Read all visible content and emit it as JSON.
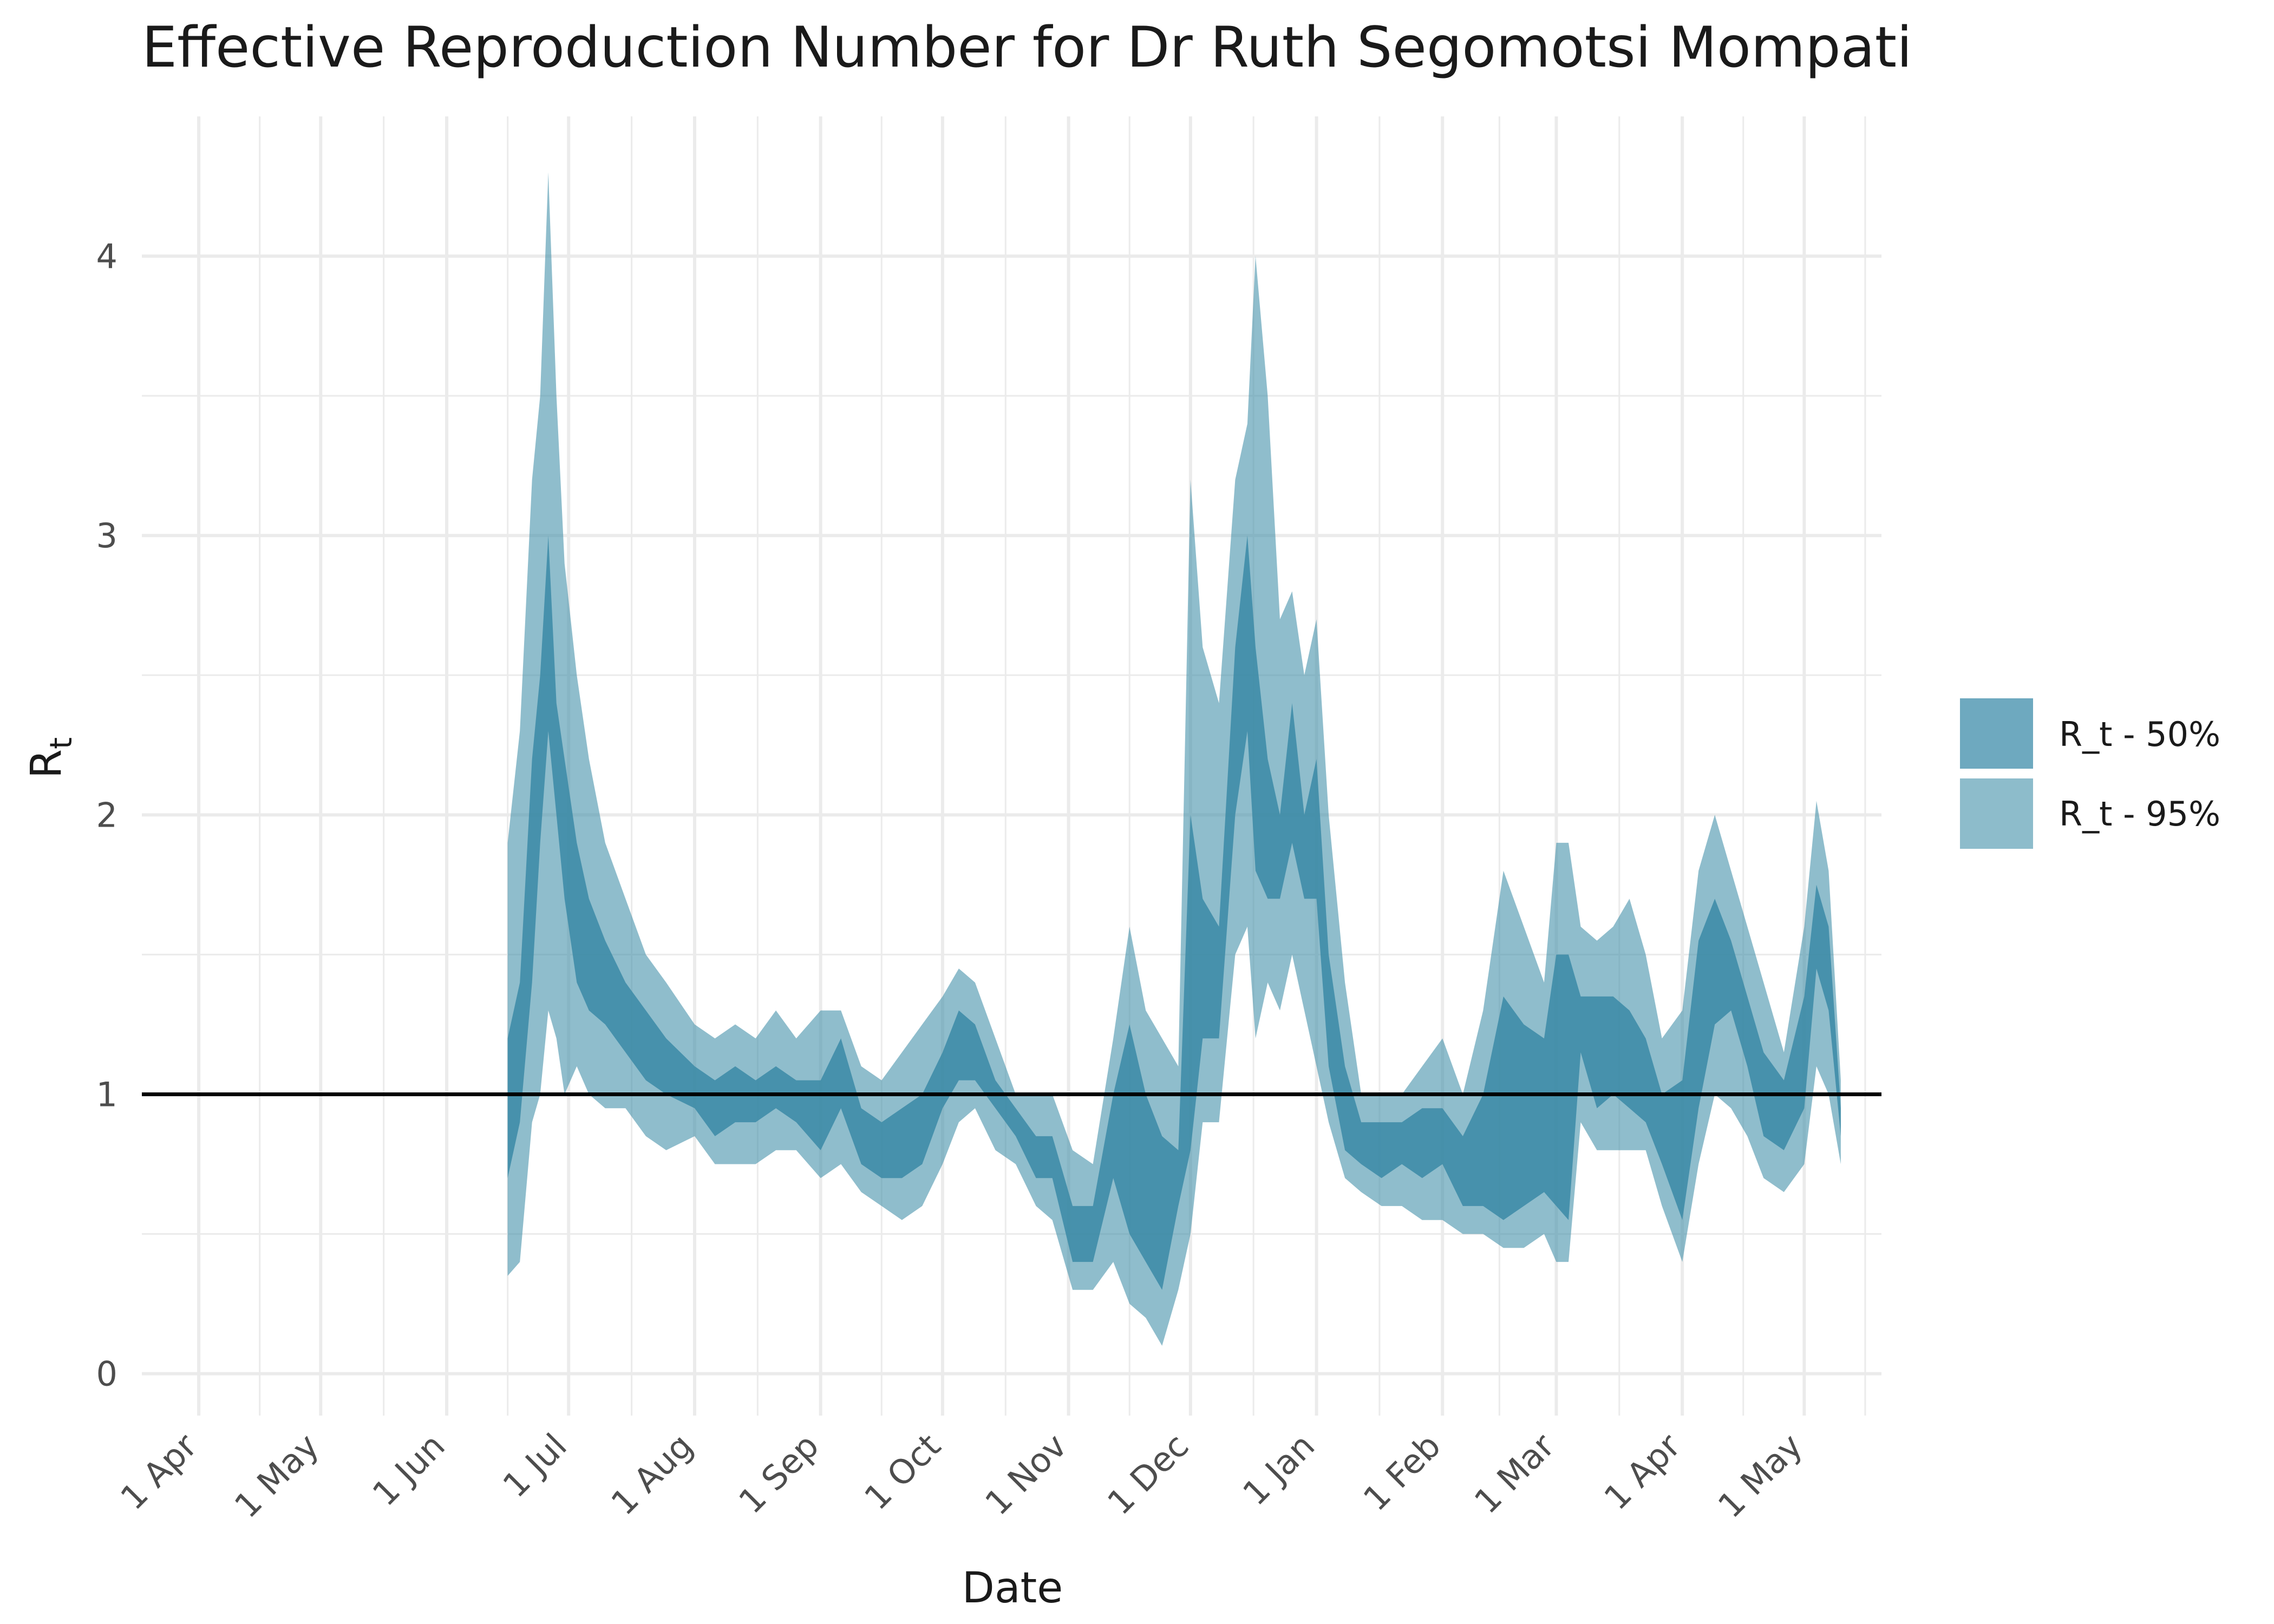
{
  "chart_data": {
    "type": "area",
    "title": "Effective Reproduction Number for Dr Ruth Segomotsi Mompati",
    "xlabel": "Date",
    "ylabel": "R",
    "ylabel_subscript": "t",
    "x_start": "2020-03-18",
    "x_end": "2021-05-20",
    "ylim": [
      -0.15,
      4.5
    ],
    "y_ticks": [
      0,
      1,
      2,
      3,
      4
    ],
    "x_ticks": [
      {
        "date": "2020-04-01",
        "label": "1 Apr"
      },
      {
        "date": "2020-05-01",
        "label": "1 May"
      },
      {
        "date": "2020-06-01",
        "label": "1 Jun"
      },
      {
        "date": "2020-07-01",
        "label": "1 Jul"
      },
      {
        "date": "2020-08-01",
        "label": "1 Aug"
      },
      {
        "date": "2020-09-01",
        "label": "1 Sep"
      },
      {
        "date": "2020-10-01",
        "label": "1 Oct"
      },
      {
        "date": "2020-11-01",
        "label": "1 Nov"
      },
      {
        "date": "2020-12-01",
        "label": "1 Dec"
      },
      {
        "date": "2021-01-01",
        "label": "1 Jan"
      },
      {
        "date": "2021-02-01",
        "label": "1 Feb"
      },
      {
        "date": "2021-03-01",
        "label": "1 Mar"
      },
      {
        "date": "2021-04-01",
        "label": "1 Apr"
      },
      {
        "date": "2021-05-01",
        "label": "1 May"
      }
    ],
    "reference_line": 1,
    "grid": true,
    "legend_position": "right",
    "colors": {
      "band50": "#3b8aa6",
      "band95": "#4a94ad",
      "reference": "#000000"
    },
    "series": [
      {
        "name": "R_t - 95%",
        "x": [
          "2020-06-16",
          "2020-06-19",
          "2020-06-22",
          "2020-06-24",
          "2020-06-26",
          "2020-06-28",
          "2020-06-30",
          "2020-07-03",
          "2020-07-06",
          "2020-07-10",
          "2020-07-15",
          "2020-07-20",
          "2020-07-25",
          "2020-08-01",
          "2020-08-06",
          "2020-08-11",
          "2020-08-16",
          "2020-08-21",
          "2020-08-26",
          "2020-09-01",
          "2020-09-06",
          "2020-09-11",
          "2020-09-16",
          "2020-09-21",
          "2020-09-26",
          "2020-10-01",
          "2020-10-05",
          "2020-10-09",
          "2020-10-14",
          "2020-10-19",
          "2020-10-24",
          "2020-10-28",
          "2020-11-02",
          "2020-11-07",
          "2020-11-12",
          "2020-11-16",
          "2020-11-20",
          "2020-11-24",
          "2020-11-28",
          "2020-12-01",
          "2020-12-04",
          "2020-12-08",
          "2020-12-12",
          "2020-12-15",
          "2020-12-17",
          "2020-12-20",
          "2020-12-23",
          "2020-12-26",
          "2020-12-29",
          "2021-01-01",
          "2021-01-04",
          "2021-01-08",
          "2021-01-12",
          "2021-01-17",
          "2021-01-22",
          "2021-01-27",
          "2021-02-01",
          "2021-02-06",
          "2021-02-11",
          "2021-02-16",
          "2021-02-21",
          "2021-02-26",
          "2021-03-01",
          "2021-03-04",
          "2021-03-07",
          "2021-03-11",
          "2021-03-15",
          "2021-03-19",
          "2021-03-23",
          "2021-03-27",
          "2021-04-01",
          "2021-04-05",
          "2021-04-09",
          "2021-04-13",
          "2021-04-17",
          "2021-04-21",
          "2021-04-26",
          "2021-05-01",
          "2021-05-04",
          "2021-05-07",
          "2021-05-10"
        ],
        "lower": [
          0.35,
          0.4,
          0.9,
          1.0,
          1.3,
          1.2,
          1.0,
          1.1,
          1.0,
          0.95,
          0.95,
          0.85,
          0.8,
          0.85,
          0.75,
          0.75,
          0.75,
          0.8,
          0.8,
          0.7,
          0.75,
          0.65,
          0.6,
          0.55,
          0.6,
          0.75,
          0.9,
          0.95,
          0.8,
          0.75,
          0.6,
          0.55,
          0.3,
          0.3,
          0.4,
          0.25,
          0.2,
          0.1,
          0.3,
          0.5,
          0.9,
          0.9,
          1.5,
          1.6,
          1.2,
          1.4,
          1.3,
          1.5,
          1.3,
          1.1,
          0.9,
          0.7,
          0.65,
          0.6,
          0.6,
          0.55,
          0.55,
          0.5,
          0.5,
          0.45,
          0.45,
          0.5,
          0.4,
          0.4,
          0.9,
          0.8,
          0.8,
          0.8,
          0.8,
          0.6,
          0.4,
          0.75,
          1.0,
          0.95,
          0.85,
          0.7,
          0.65,
          0.75,
          1.1,
          1.0,
          0.75
        ],
        "upper": [
          1.9,
          2.3,
          3.2,
          3.5,
          4.3,
          3.5,
          2.9,
          2.5,
          2.2,
          1.9,
          1.7,
          1.5,
          1.4,
          1.25,
          1.2,
          1.25,
          1.2,
          1.3,
          1.2,
          1.3,
          1.3,
          1.1,
          1.05,
          1.15,
          1.25,
          1.35,
          1.45,
          1.4,
          1.2,
          1.0,
          1.0,
          1.0,
          0.8,
          0.75,
          1.2,
          1.6,
          1.3,
          1.2,
          1.1,
          3.2,
          2.6,
          2.4,
          3.2,
          3.4,
          4.0,
          3.5,
          2.7,
          2.8,
          2.5,
          2.7,
          2.0,
          1.4,
          1.0,
          1.0,
          1.0,
          1.1,
          1.2,
          1.0,
          1.3,
          1.8,
          1.6,
          1.4,
          1.9,
          1.9,
          1.6,
          1.55,
          1.6,
          1.7,
          1.5,
          1.2,
          1.3,
          1.8,
          2.0,
          1.8,
          1.6,
          1.4,
          1.15,
          1.6,
          2.05,
          1.8,
          1.05
        ]
      },
      {
        "name": "R_t - 50%",
        "x": [
          "2020-06-16",
          "2020-06-19",
          "2020-06-22",
          "2020-06-24",
          "2020-06-26",
          "2020-06-28",
          "2020-06-30",
          "2020-07-03",
          "2020-07-06",
          "2020-07-10",
          "2020-07-15",
          "2020-07-20",
          "2020-07-25",
          "2020-08-01",
          "2020-08-06",
          "2020-08-11",
          "2020-08-16",
          "2020-08-21",
          "2020-08-26",
          "2020-09-01",
          "2020-09-06",
          "2020-09-11",
          "2020-09-16",
          "2020-09-21",
          "2020-09-26",
          "2020-10-01",
          "2020-10-05",
          "2020-10-09",
          "2020-10-14",
          "2020-10-19",
          "2020-10-24",
          "2020-10-28",
          "2020-11-02",
          "2020-11-07",
          "2020-11-12",
          "2020-11-16",
          "2020-11-20",
          "2020-11-24",
          "2020-11-28",
          "2020-12-01",
          "2020-12-04",
          "2020-12-08",
          "2020-12-12",
          "2020-12-15",
          "2020-12-17",
          "2020-12-20",
          "2020-12-23",
          "2020-12-26",
          "2020-12-29",
          "2021-01-01",
          "2021-01-04",
          "2021-01-08",
          "2021-01-12",
          "2021-01-17",
          "2021-01-22",
          "2021-01-27",
          "2021-02-01",
          "2021-02-06",
          "2021-02-11",
          "2021-02-16",
          "2021-02-21",
          "2021-02-26",
          "2021-03-01",
          "2021-03-04",
          "2021-03-07",
          "2021-03-11",
          "2021-03-15",
          "2021-03-19",
          "2021-03-23",
          "2021-03-27",
          "2021-04-01",
          "2021-04-05",
          "2021-04-09",
          "2021-04-13",
          "2021-04-17",
          "2021-04-21",
          "2021-04-26",
          "2021-05-01",
          "2021-05-04",
          "2021-05-07",
          "2021-05-10"
        ],
        "lower": [
          0.7,
          0.9,
          1.4,
          1.9,
          2.3,
          2.0,
          1.7,
          1.4,
          1.3,
          1.25,
          1.15,
          1.05,
          1.0,
          0.95,
          0.85,
          0.9,
          0.9,
          0.95,
          0.9,
          0.8,
          0.95,
          0.75,
          0.7,
          0.7,
          0.75,
          0.95,
          1.05,
          1.05,
          0.95,
          0.85,
          0.7,
          0.7,
          0.4,
          0.4,
          0.7,
          0.5,
          0.4,
          0.3,
          0.6,
          0.8,
          1.2,
          1.2,
          2.0,
          2.3,
          1.8,
          1.7,
          1.7,
          1.9,
          1.7,
          1.7,
          1.1,
          0.8,
          0.75,
          0.7,
          0.75,
          0.7,
          0.75,
          0.6,
          0.6,
          0.55,
          0.6,
          0.65,
          0.6,
          0.55,
          1.15,
          0.95,
          1.0,
          0.95,
          0.9,
          0.75,
          0.55,
          0.95,
          1.25,
          1.3,
          1.1,
          0.85,
          0.8,
          0.95,
          1.45,
          1.3,
          0.85
        ],
        "upper": [
          1.2,
          1.4,
          2.2,
          2.5,
          3.0,
          2.4,
          2.2,
          1.9,
          1.7,
          1.55,
          1.4,
          1.3,
          1.2,
          1.1,
          1.05,
          1.1,
          1.05,
          1.1,
          1.05,
          1.05,
          1.2,
          0.95,
          0.9,
          0.95,
          1.0,
          1.15,
          1.3,
          1.25,
          1.05,
          0.95,
          0.85,
          0.85,
          0.6,
          0.6,
          1.0,
          1.25,
          1.0,
          0.85,
          0.8,
          2.0,
          1.7,
          1.6,
          2.6,
          3.0,
          2.6,
          2.2,
          2.0,
          2.4,
          2.0,
          2.2,
          1.5,
          1.1,
          0.9,
          0.9,
          0.9,
          0.95,
          0.95,
          0.85,
          1.0,
          1.35,
          1.25,
          1.2,
          1.5,
          1.5,
          1.35,
          1.35,
          1.35,
          1.3,
          1.2,
          1.0,
          1.05,
          1.55,
          1.7,
          1.55,
          1.35,
          1.15,
          1.05,
          1.35,
          1.75,
          1.6,
          0.95
        ]
      }
    ]
  }
}
